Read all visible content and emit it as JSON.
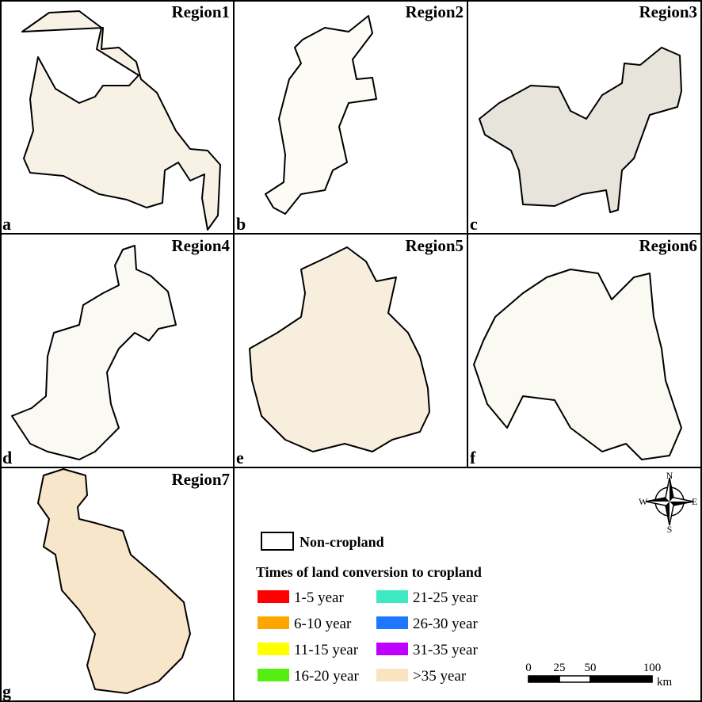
{
  "panels": [
    {
      "letter": "a",
      "title": "Region1"
    },
    {
      "letter": "b",
      "title": "Region2"
    },
    {
      "letter": "c",
      "title": "Region3"
    },
    {
      "letter": "d",
      "title": "Region4"
    },
    {
      "letter": "e",
      "title": "Region5"
    },
    {
      "letter": "f",
      "title": "Region6"
    },
    {
      "letter": "g",
      "title": "Region7"
    }
  ],
  "legend": {
    "noncropland": "Non-cropland",
    "title": "Times of land conversion to cropland",
    "items": [
      {
        "label": "1-5 year",
        "color": "#ff0000"
      },
      {
        "label": "6-10 year",
        "color": "#ffa500"
      },
      {
        "label": "11-15 year",
        "color": "#ffff00"
      },
      {
        "label": "16-20 year",
        "color": "#55ee11"
      },
      {
        "label": "21-25 year",
        "color": "#3ee8c0"
      },
      {
        "label": "26-30 year",
        "color": "#1e78ff"
      },
      {
        "label": "31-35 year",
        "color": "#c000ff"
      },
      {
        "label": ">35 year",
        "color": "#fae3c0"
      }
    ]
  },
  "compass": {
    "n": "N",
    "s": "S",
    "e": "E",
    "w": "W"
  },
  "scalebar": {
    "ticks": [
      0,
      25,
      50,
      100
    ],
    "unit": "km"
  }
}
